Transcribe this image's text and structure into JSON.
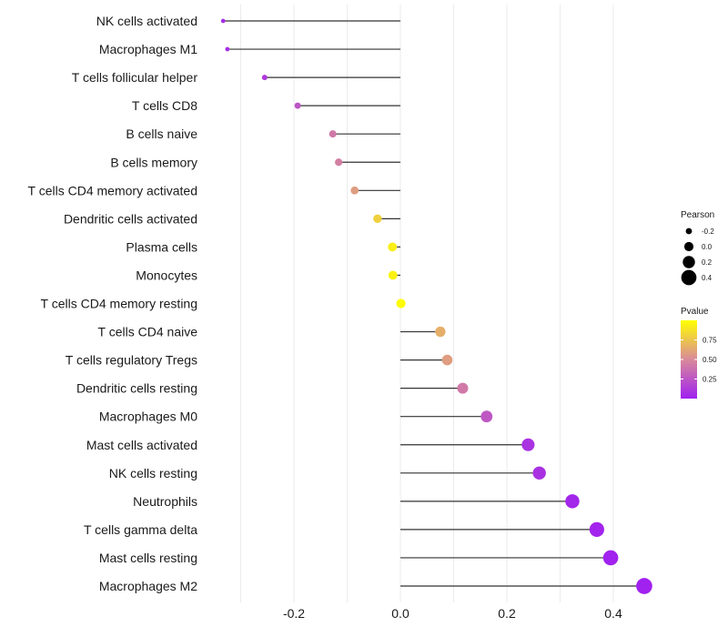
{
  "chart_data": {
    "type": "lollipop",
    "title": "",
    "xlabel": "",
    "ylabel": "",
    "xlim": [
      -0.37,
      0.48
    ],
    "grid": true,
    "x_ticks": [
      {
        "value": -0.2,
        "label": "-0.2"
      },
      {
        "value": 0.0,
        "label": "0.0"
      },
      {
        "value": 0.2,
        "label": "0.2"
      },
      {
        "value": 0.4,
        "label": "0.4"
      }
    ],
    "categories": [
      "NK cells activated",
      "Macrophages M1",
      "T cells follicular helper",
      "T cells CD8",
      "B cells naive",
      "B cells memory",
      "T cells CD4 memory activated",
      "Dendritic cells activated",
      "Plasma cells",
      "Monocytes",
      "T cells CD4 memory resting",
      "T cells CD4 naive",
      "T cells regulatory  Tregs ",
      "Dendritic cells resting",
      "Macrophages M0",
      "Mast cells activated",
      "NK cells resting",
      "Neutrophils",
      "T cells gamma delta",
      "Mast cells resting",
      "Macrophages M2"
    ],
    "pearson": [
      -0.333,
      -0.325,
      -0.255,
      -0.193,
      -0.127,
      -0.116,
      -0.086,
      -0.043,
      -0.015,
      -0.014,
      0.001,
      0.075,
      0.088,
      0.117,
      0.162,
      0.24,
      0.261,
      0.323,
      0.369,
      0.395,
      0.458
    ],
    "pvalue": [
      0.05,
      0.06,
      0.12,
      0.25,
      0.42,
      0.45,
      0.58,
      0.8,
      0.93,
      0.94,
      0.99,
      0.66,
      0.58,
      0.42,
      0.26,
      0.09,
      0.08,
      0.03,
      0.02,
      0.01,
      0.005
    ],
    "legend_size": {
      "title": "Pearson",
      "entries": [
        {
          "value": -0.2,
          "label": "-0.2"
        },
        {
          "value": 0.0,
          "label": "0.0"
        },
        {
          "value": 0.2,
          "label": "0.2"
        },
        {
          "value": 0.4,
          "label": "0.4"
        }
      ]
    },
    "legend_color": {
      "title": "Pvalue",
      "range": [
        0.0,
        1.0
      ],
      "ticks": [
        {
          "value": 0.75,
          "label": "0.75"
        },
        {
          "value": 0.5,
          "label": "0.50"
        },
        {
          "value": 0.25,
          "label": "0.25"
        }
      ],
      "color_low": "#a020f0",
      "color_mid": "#d98a9a",
      "color_high": "#ffff00"
    },
    "colors": {
      "segment": "#333333",
      "grid": "#ebebeb",
      "legend_point": "#000000"
    }
  }
}
